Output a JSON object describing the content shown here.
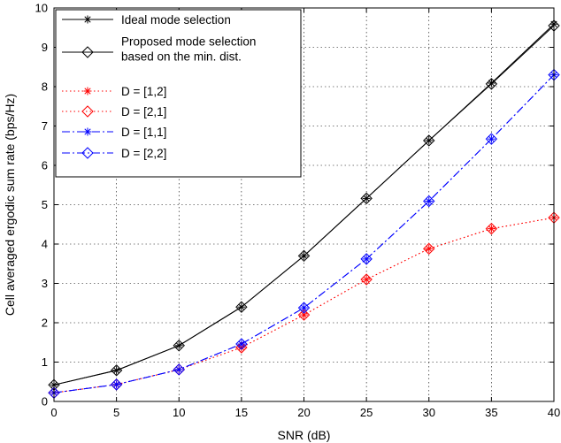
{
  "chart_data": {
    "type": "line",
    "title": "",
    "xlabel": "SNR (dB)",
    "ylabel": "Cell averaged ergodic sum rate (bps/Hz)",
    "xlim": [
      0,
      40
    ],
    "ylim": [
      0,
      10
    ],
    "x_ticks": [
      "0",
      "5",
      "10",
      "15",
      "20",
      "25",
      "30",
      "35",
      "40"
    ],
    "y_ticks": [
      "0",
      "1",
      "2",
      "3",
      "4",
      "5",
      "6",
      "7",
      "8",
      "9",
      "10"
    ],
    "grid": true,
    "legend_position": "top-left",
    "x": [
      0,
      5,
      10,
      15,
      20,
      25,
      30,
      35,
      40
    ],
    "series": [
      {
        "name": "Ideal mode selection",
        "color": "#000000",
        "line": "solid",
        "marker": "star",
        "values": [
          0.42,
          0.79,
          1.42,
          2.4,
          3.7,
          5.16,
          6.63,
          8.09,
          9.59
        ]
      },
      {
        "name": "Proposed mode selection based on the min. dist.",
        "legend_lines": [
          "Proposed mode selection",
          "based on the min. dist."
        ],
        "color": "#000000",
        "line": "solid",
        "marker": "diamond",
        "values": [
          0.42,
          0.79,
          1.42,
          2.4,
          3.7,
          5.16,
          6.63,
          8.07,
          9.55
        ]
      },
      {
        "name": "D = [1,2]",
        "color": "#ff0000",
        "line": "dotted",
        "marker": "star",
        "values": [
          0.22,
          0.43,
          0.81,
          1.37,
          2.2,
          3.1,
          3.88,
          4.39,
          4.67
        ]
      },
      {
        "name": "D = [2,1]",
        "color": "#ff0000",
        "line": "dotted",
        "marker": "diamond",
        "values": [
          0.22,
          0.43,
          0.81,
          1.37,
          2.2,
          3.1,
          3.88,
          4.39,
          4.67
        ]
      },
      {
        "name": "D = [1,1]",
        "color": "#0000ff",
        "line": "dashdot",
        "marker": "star",
        "values": [
          0.22,
          0.43,
          0.81,
          1.46,
          2.38,
          3.62,
          5.09,
          6.67,
          8.3
        ]
      },
      {
        "name": "D = [2,2]",
        "color": "#0000ff",
        "line": "dashdot",
        "marker": "diamond",
        "values": [
          0.22,
          0.43,
          0.81,
          1.46,
          2.38,
          3.62,
          5.09,
          6.67,
          8.3
        ]
      }
    ]
  }
}
